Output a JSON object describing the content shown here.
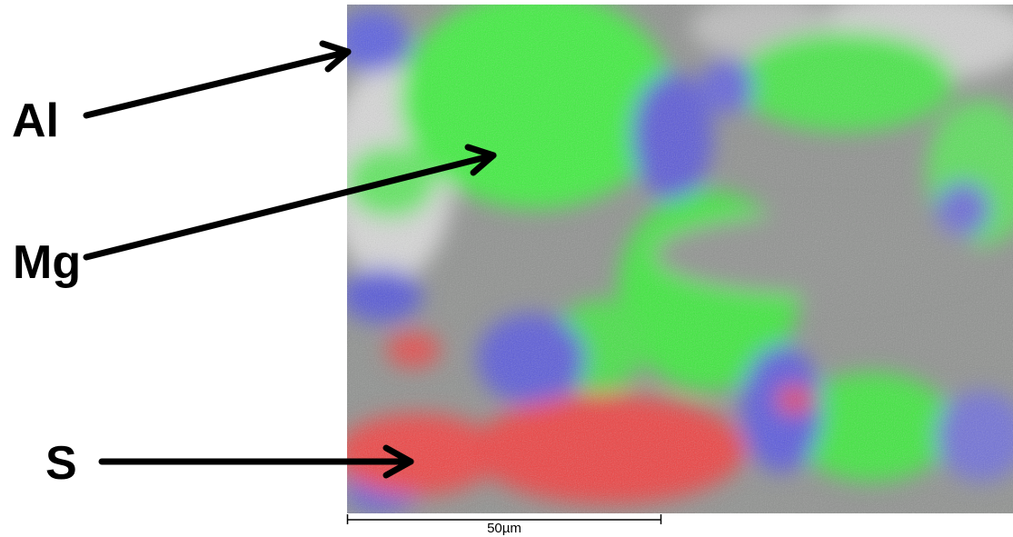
{
  "labels": {
    "al": "Al",
    "mg": "Mg",
    "s": "S"
  },
  "scale_bar": {
    "label": "50µm"
  }
}
